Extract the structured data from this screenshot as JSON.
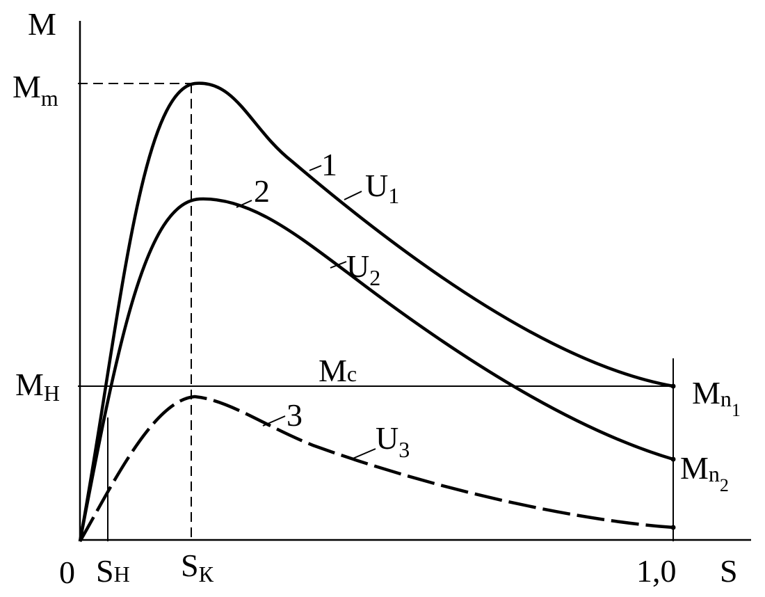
{
  "axes": {
    "y_label": "M",
    "x_label": "S",
    "origin": "0",
    "x_end": "1,0"
  },
  "y_marks": {
    "max": {
      "main": "M",
      "sub": "m"
    },
    "nominal": {
      "main": "M",
      "sub": "Н"
    }
  },
  "x_marks": {
    "nominal": {
      "main": "S",
      "sub": "Н"
    },
    "critical": {
      "main": "S",
      "sub": "К"
    }
  },
  "load_line": {
    "main": "M",
    "sub": "c"
  },
  "start_torques": [
    {
      "main": "M",
      "sub": "n",
      "subsub": "1"
    },
    {
      "main": "M",
      "sub": "n",
      "subsub": "2"
    }
  ],
  "curves": [
    {
      "number": "1",
      "voltage": {
        "main": "U",
        "sub": "1"
      }
    },
    {
      "number": "2",
      "voltage": {
        "main": "U",
        "sub": "2"
      }
    },
    {
      "number": "3",
      "voltage": {
        "main": "U",
        "sub": "3"
      }
    }
  ]
}
